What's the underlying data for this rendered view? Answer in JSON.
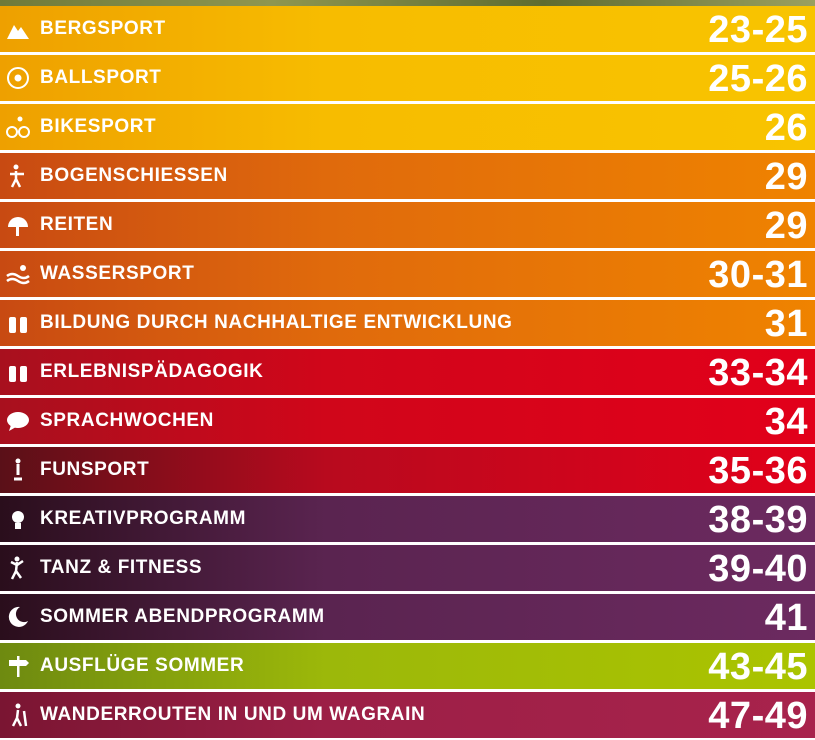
{
  "rows": [
    {
      "label": "BERGSPORT",
      "pages": "23-25"
    },
    {
      "label": "BALLSPORT",
      "pages": "25-26"
    },
    {
      "label": "BIKESPORT",
      "pages": "26"
    },
    {
      "label": "BOGENSCHIESSEN",
      "pages": "29"
    },
    {
      "label": "REITEN",
      "pages": "29"
    },
    {
      "label": "WASSERSPORT",
      "pages": "30-31"
    },
    {
      "label": "BILDUNG DURCH NACHHALTIGE ENTWICKLUNG",
      "pages": "31"
    },
    {
      "label": "ERLEBNISPÄDAGOGIK",
      "pages": "33-34"
    },
    {
      "label": "SPRACHWOCHEN",
      "pages": "34"
    },
    {
      "label": "FUNSPORT",
      "pages": "35-36"
    },
    {
      "label": "KREATIVPROGRAMM",
      "pages": "38-39"
    },
    {
      "label": "TANZ & FITNESS",
      "pages": "39-40"
    },
    {
      "label": "SOMMER ABENDPROGRAMM",
      "pages": "41"
    },
    {
      "label": "AUSFLÜGE SOMMER",
      "pages": "43-45"
    },
    {
      "label": "WANDERROUTEN IN UND UM WAGRAIN",
      "pages": "47-49"
    }
  ]
}
